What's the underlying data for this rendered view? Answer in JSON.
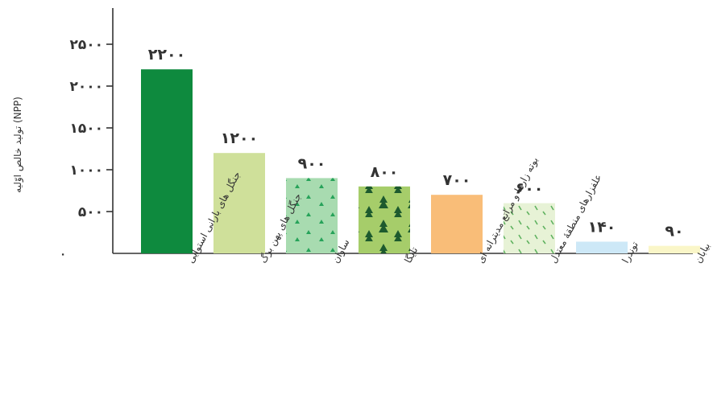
{
  "chart_data": {
    "type": "bar",
    "ylabel": "تولید خالص اوّلیه (NPP)",
    "ylim": [
      0,
      2500
    ],
    "yticks": [
      0,
      500,
      1000,
      1500,
      2000,
      2500
    ],
    "ytick_labels": [
      "۰",
      "۵۰۰",
      "۱۰۰۰",
      "۱۵۰۰",
      "۲۰۰۰",
      "۲۵۰۰"
    ],
    "categories": [
      "جنگل های بارانی استوایی",
      "جنگل های پهن برگ",
      "ساوان",
      "تایگا",
      "بوته زارها و مراتع مدیترانه ای",
      "علفزارهای منطقهٔ معتدل",
      "توندرا",
      "بیابان"
    ],
    "values": [
      2200,
      1200,
      900,
      800,
      700,
      600,
      140,
      90
    ],
    "value_labels": [
      "۲۲۰۰",
      "۱۲۰۰",
      "۹۰۰",
      "۸۰۰",
      "۷۰۰",
      "۶۰۰",
      "۱۴۰",
      "۹۰"
    ],
    "colors": [
      "#0e8a3e",
      "#cfe09a",
      "#a8dbb0",
      "#a6cd6a",
      "#f9bd78",
      "#e7f2d6",
      "#cde8f7",
      "#faf6c8"
    ],
    "patterns": [
      "none",
      "none",
      "grass-tufts",
      "pine-trees",
      "none",
      "grass-dashes",
      "none",
      "none"
    ],
    "grid": false
  }
}
